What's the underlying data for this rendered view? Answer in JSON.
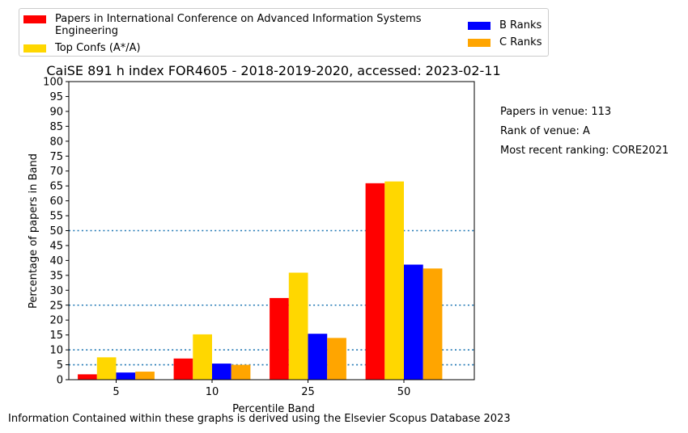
{
  "chart_data": {
    "type": "bar",
    "title": "CaiSE 891 h index FOR4605 - 2018-2019-2020, accessed: 2023-02-11",
    "xlabel": "Percentile Band",
    "ylabel": "Percentage of papers in Band",
    "categories": [
      "5",
      "10",
      "25",
      "50"
    ],
    "ylim": [
      0,
      100
    ],
    "yticks": [
      "0",
      "5",
      "10",
      "15",
      "20",
      "25",
      "30",
      "35",
      "40",
      "45",
      "50",
      "55",
      "60",
      "65",
      "70",
      "75",
      "80",
      "85",
      "90",
      "95",
      "100"
    ],
    "reference_lines": [
      5,
      10,
      25,
      50
    ],
    "reference_line_color": "#1f77b4",
    "series": [
      {
        "name": "Papers in International Conference on Advanced Information Systems Engineering",
        "color": "#ff0000",
        "values": [
          1.8,
          7.1,
          27.4,
          65.9
        ]
      },
      {
        "name": "Top Confs (A*/A)",
        "color": "#ffd700",
        "values": [
          7.5,
          15.2,
          35.9,
          66.5
        ]
      },
      {
        "name": "B Ranks",
        "color": "#0000ff",
        "values": [
          2.4,
          5.4,
          15.4,
          38.6
        ]
      },
      {
        "name": "C Ranks",
        "color": "#ffa500",
        "values": [
          2.7,
          5.0,
          14.0,
          37.3
        ]
      }
    ],
    "legend": {
      "placement": "top",
      "labels": {
        "red": "Papers in International Conference on Advanced Information Systems Engineering",
        "yellow": "Top Confs (A*/A)",
        "blue": "B Ranks",
        "orange": "C Ranks"
      }
    }
  },
  "notes": {
    "papers": "Papers in venue: 113",
    "rank": "Rank of venue: A",
    "recent": "Most recent ranking: CORE2021"
  },
  "footer": "Information Contained within these graphs is derived using the Elsevier Scopus Database 2023"
}
